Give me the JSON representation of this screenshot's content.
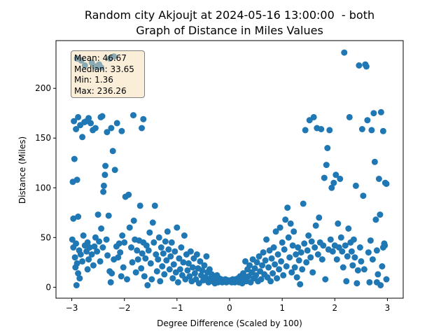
{
  "chart_data": {
    "type": "scatter",
    "title": "Random city Akjoujt at 2024-05-16 13:00:00  - both",
    "subtitle": "Graph of Distance in Miles Values",
    "xlabel": "Degree Difference (Scaled by 100)",
    "ylabel": "Distance (Miles)",
    "xlim": [
      -3.3,
      3.3
    ],
    "ylim": [
      -11,
      248
    ],
    "xticks": [
      -3,
      -2,
      -1,
      0,
      1,
      2,
      3
    ],
    "yticks": [
      0,
      50,
      100,
      150,
      200
    ],
    "grid": false,
    "marker_color": "#1f77b4",
    "stats": {
      "mean": "Mean: 46.67",
      "median": "Median: 33.65",
      "min": "Min: 1.36",
      "max": "Max: 236.26"
    },
    "points": [
      [
        -2.98,
        106
      ],
      [
        -2.95,
        129
      ],
      [
        -2.9,
        108
      ],
      [
        -2.97,
        69
      ],
      [
        -2.88,
        71
      ],
      [
        -2.99,
        48
      ],
      [
        -2.92,
        44
      ],
      [
        -2.86,
        37
      ],
      [
        -2.94,
        30
      ],
      [
        -2.9,
        24
      ],
      [
        -2.97,
        40
      ],
      [
        -2.83,
        33
      ],
      [
        -2.93,
        20
      ],
      [
        -2.88,
        14
      ],
      [
        -2.91,
        2
      ],
      [
        -2.85,
        9
      ],
      [
        -2.8,
        26
      ],
      [
        -2.78,
        52
      ],
      [
        -2.75,
        42
      ],
      [
        -2.72,
        36
      ],
      [
        -2.7,
        45
      ],
      [
        -2.68,
        28
      ],
      [
        -2.66,
        40
      ],
      [
        -2.7,
        18
      ],
      [
        -2.62,
        33
      ],
      [
        -2.59,
        22
      ],
      [
        -2.57,
        41
      ],
      [
        -2.55,
        50
      ],
      [
        -2.52,
        36
      ],
      [
        -2.5,
        73
      ],
      [
        -2.48,
        46
      ],
      [
        -2.46,
        26
      ],
      [
        -2.44,
        59
      ],
      [
        -2.41,
        40
      ],
      [
        -2.4,
        96
      ],
      [
        -2.39,
        102
      ],
      [
        -2.37,
        113
      ],
      [
        -2.36,
        122
      ],
      [
        -2.34,
        48
      ],
      [
        -2.32,
        32
      ],
      [
        -2.3,
        72
      ],
      [
        -2.28,
        16
      ],
      [
        -2.26,
        5
      ],
      [
        -2.24,
        14
      ],
      [
        -2.22,
        137
      ],
      [
        -2.2,
        28
      ],
      [
        -2.18,
        118
      ],
      [
        -2.15,
        41
      ],
      [
        -2.12,
        30
      ],
      [
        -2.1,
        44
      ],
      [
        -2.08,
        35
      ],
      [
        -2.06,
        11
      ],
      [
        -2.04,
        52
      ],
      [
        -2.02,
        20
      ],
      [
        -2.0,
        45
      ],
      [
        -1.98,
        91
      ],
      [
        -1.95,
        8
      ],
      [
        -1.92,
        93
      ],
      [
        -1.9,
        60
      ],
      [
        -1.87,
        40
      ],
      [
        -1.85,
        25
      ],
      [
        -1.82,
        67
      ],
      [
        -1.8,
        48
      ],
      [
        -1.78,
        15
      ],
      [
        -1.76,
        37
      ],
      [
        -1.74,
        28
      ],
      [
        -1.72,
        47
      ],
      [
        -1.7,
        82
      ],
      [
        -1.68,
        19
      ],
      [
        -1.66,
        34
      ],
      [
        -1.64,
        45
      ],
      [
        -1.62,
        11
      ],
      [
        -1.6,
        29
      ],
      [
        -1.58,
        42
      ],
      [
        -1.56,
        2
      ],
      [
        -1.54,
        37
      ],
      [
        -1.52,
        55
      ],
      [
        -1.5,
        24
      ],
      [
        -1.48,
        8
      ],
      [
        -1.46,
        65
      ],
      [
        -1.44,
        45
      ],
      [
        -1.42,
        82
      ],
      [
        -1.4,
        33
      ],
      [
        -1.38,
        16
      ],
      [
        -1.36,
        28
      ],
      [
        -1.34,
        50
      ],
      [
        -1.32,
        6
      ],
      [
        -1.3,
        40
      ],
      [
        -1.28,
        21
      ],
      [
        -1.26,
        34
      ],
      [
        -1.24,
        13
      ],
      [
        -1.22,
        46
      ],
      [
        -1.2,
        27
      ],
      [
        -1.18,
        56
      ],
      [
        -1.16,
        38
      ],
      [
        -1.14,
        18
      ],
      [
        -1.12,
        31
      ],
      [
        -1.1,
        45
      ],
      [
        -1.08,
        9
      ],
      [
        -1.06,
        23
      ],
      [
        -1.04,
        36
      ],
      [
        -1.02,
        15
      ],
      [
        -1.0,
        60
      ],
      [
        -0.98,
        5
      ],
      [
        -0.96,
        29
      ],
      [
        -0.94,
        18
      ],
      [
        -0.92,
        40
      ],
      [
        -0.9,
        12
      ],
      [
        -0.88,
        25
      ],
      [
        -0.86,
        52
      ],
      [
        -0.84,
        8
      ],
      [
        -0.82,
        33
      ],
      [
        -0.8,
        17
      ],
      [
        -0.78,
        24
      ],
      [
        -0.76,
        11
      ],
      [
        -0.74,
        36
      ],
      [
        -0.72,
        6
      ],
      [
        -0.7,
        20
      ],
      [
        -0.68,
        29
      ],
      [
        -0.66,
        14
      ],
      [
        -0.64,
        8
      ],
      [
        -0.62,
        33
      ],
      [
        -0.6,
        19
      ],
      [
        -0.58,
        4
      ],
      [
        -0.56,
        26
      ],
      [
        -0.54,
        12
      ],
      [
        -0.52,
        17
      ],
      [
        -0.5,
        7
      ],
      [
        -0.48,
        22
      ],
      [
        -0.46,
        10
      ],
      [
        -0.44,
        31
      ],
      [
        -0.42,
        15
      ],
      [
        -0.4,
        5
      ],
      [
        -0.38,
        18
      ],
      [
        -0.36,
        9
      ],
      [
        -0.34,
        13
      ],
      [
        -0.32,
        6
      ],
      [
        -0.3,
        11
      ],
      [
        -0.28,
        4
      ],
      [
        -0.26,
        8
      ],
      [
        -0.24,
        12
      ],
      [
        -0.22,
        5
      ],
      [
        -0.2,
        9
      ],
      [
        -0.18,
        6
      ],
      [
        -0.16,
        8
      ],
      [
        -0.14,
        5
      ],
      [
        -0.12,
        7
      ],
      [
        -0.1,
        6
      ],
      [
        -0.08,
        8
      ],
      [
        -0.06,
        5
      ],
      [
        -0.04,
        7
      ],
      [
        -0.02,
        6
      ],
      [
        0.0,
        6
      ],
      [
        0.02,
        7
      ],
      [
        0.04,
        5
      ],
      [
        0.06,
        8
      ],
      [
        0.08,
        6
      ],
      [
        0.1,
        5
      ],
      [
        0.12,
        8
      ],
      [
        0.14,
        6
      ],
      [
        0.16,
        9
      ],
      [
        0.18,
        5
      ],
      [
        0.2,
        11
      ],
      [
        0.22,
        7
      ],
      [
        0.24,
        4
      ],
      [
        0.26,
        14
      ],
      [
        0.28,
        9
      ],
      [
        0.3,
        26
      ],
      [
        0.32,
        6
      ],
      [
        0.34,
        18
      ],
      [
        0.36,
        11
      ],
      [
        0.38,
        22
      ],
      [
        0.4,
        5
      ],
      [
        0.42,
        15
      ],
      [
        0.44,
        28
      ],
      [
        0.46,
        9
      ],
      [
        0.48,
        19
      ],
      [
        0.5,
        12
      ],
      [
        0.52,
        25
      ],
      [
        0.54,
        6
      ],
      [
        0.56,
        31
      ],
      [
        0.58,
        16
      ],
      [
        0.6,
        8
      ],
      [
        0.62,
        22
      ],
      [
        0.64,
        35
      ],
      [
        0.66,
        13
      ],
      [
        0.68,
        27
      ],
      [
        0.7,
        48
      ],
      [
        0.72,
        10
      ],
      [
        0.74,
        20
      ],
      [
        0.76,
        37
      ],
      [
        0.78,
        6
      ],
      [
        0.8,
        29
      ],
      [
        0.82,
        14
      ],
      [
        0.84,
        40
      ],
      [
        0.86,
        23
      ],
      [
        0.88,
        56
      ],
      [
        0.9,
        9
      ],
      [
        0.92,
        33
      ],
      [
        0.94,
        18
      ],
      [
        0.96,
        60
      ],
      [
        0.98,
        26
      ],
      [
        1.0,
        45
      ],
      [
        1.02,
        12
      ],
      [
        1.04,
        38
      ],
      [
        1.06,
        68
      ],
      [
        1.08,
        21
      ],
      [
        1.1,
        80
      ],
      [
        1.12,
        50
      ],
      [
        1.14,
        30
      ],
      [
        1.16,
        64
      ],
      [
        1.18,
        15
      ],
      [
        1.2,
        42
      ],
      [
        1.22,
        56
      ],
      [
        1.24,
        20
      ],
      [
        1.26,
        33
      ],
      [
        1.28,
        10
      ],
      [
        1.3,
        40
      ],
      [
        1.32,
        27
      ],
      [
        1.34,
        3
      ],
      [
        1.36,
        35
      ],
      [
        1.38,
        18
      ],
      [
        1.4,
        84
      ],
      [
        1.42,
        44
      ],
      [
        1.44,
        158
      ],
      [
        1.46,
        25
      ],
      [
        1.48,
        37
      ],
      [
        1.5,
        52
      ],
      [
        1.52,
        168
      ],
      [
        1.54,
        30
      ],
      [
        1.56,
        46
      ],
      [
        1.58,
        15
      ],
      [
        1.6,
        171
      ],
      [
        1.62,
        40
      ],
      [
        1.64,
        62
      ],
      [
        1.66,
        160
      ],
      [
        1.68,
        33
      ],
      [
        1.7,
        70
      ],
      [
        1.72,
        45
      ],
      [
        1.74,
        159
      ],
      [
        1.76,
        28
      ],
      [
        1.78,
        42
      ],
      [
        1.8,
        110
      ],
      [
        1.82,
        8
      ],
      [
        1.84,
        123
      ],
      [
        1.86,
        140
      ],
      [
        1.88,
        38
      ],
      [
        1.9,
        158
      ],
      [
        1.92,
        48
      ],
      [
        1.94,
        100
      ],
      [
        1.96,
        36
      ],
      [
        1.98,
        105
      ],
      [
        2.0,
        42
      ],
      [
        2.02,
        113
      ],
      [
        2.04,
        28
      ],
      [
        2.06,
        64
      ],
      [
        2.08,
        40
      ],
      [
        2.1,
        109
      ],
      [
        2.12,
        50
      ],
      [
        2.14,
        36
      ],
      [
        2.16,
        20
      ],
      [
        2.18,
        236
      ],
      [
        2.2,
        42
      ],
      [
        2.22,
        6
      ],
      [
        2.24,
        31
      ],
      [
        2.26,
        59
      ],
      [
        2.28,
        171
      ],
      [
        2.3,
        45
      ],
      [
        2.32,
        36
      ],
      [
        2.34,
        22
      ],
      [
        2.36,
        48
      ],
      [
        2.38,
        30
      ],
      [
        2.4,
        102
      ],
      [
        2.42,
        4
      ],
      [
        2.44,
        17
      ],
      [
        2.46,
        223
      ],
      [
        2.48,
        40
      ],
      [
        2.5,
        26
      ],
      [
        2.52,
        159
      ],
      [
        2.54,
        92
      ],
      [
        2.56,
        18
      ],
      [
        2.58,
        224
      ],
      [
        2.6,
        222
      ],
      [
        2.62,
        168
      ],
      [
        2.64,
        35
      ],
      [
        2.66,
        5
      ],
      [
        2.68,
        47
      ],
      [
        2.7,
        158
      ],
      [
        2.72,
        28
      ],
      [
        2.74,
        175
      ],
      [
        2.76,
        126
      ],
      [
        2.78,
        68
      ],
      [
        2.8,
        37
      ],
      [
        2.82,
        13
      ],
      [
        2.84,
        109
      ],
      [
        2.86,
        73
      ],
      [
        2.88,
        176
      ],
      [
        2.9,
        21
      ],
      [
        2.92,
        157
      ],
      [
        2.94,
        44
      ],
      [
        2.96,
        105
      ],
      [
        2.98,
        8
      ],
      [
        2.8,
        5
      ],
      [
        2.87,
        2
      ],
      [
        2.92,
        40
      ],
      [
        2.95,
        42
      ],
      [
        2.98,
        104
      ],
      [
        -2.96,
        167
      ],
      [
        -2.92,
        159
      ],
      [
        -2.88,
        171
      ],
      [
        -2.84,
        163
      ],
      [
        -2.8,
        151
      ],
      [
        -2.76,
        166
      ],
      [
        -2.72,
        167
      ],
      [
        -2.68,
        170
      ],
      [
        -2.64,
        165
      ],
      [
        -2.6,
        158
      ],
      [
        -2.55,
        160
      ],
      [
        -2.45,
        171
      ],
      [
        -2.42,
        172
      ],
      [
        -2.33,
        156
      ],
      [
        -2.25,
        160
      ],
      [
        -2.14,
        165
      ],
      [
        -2.05,
        157
      ],
      [
        -1.83,
        173
      ],
      [
        -1.67,
        160
      ],
      [
        -1.64,
        169
      ],
      [
        -2.9,
        230
      ],
      [
        -2.82,
        228
      ],
      [
        -2.75,
        223
      ],
      [
        -2.62,
        226
      ],
      [
        -2.56,
        222
      ],
      [
        -2.48,
        224
      ],
      [
        -2.44,
        221
      ],
      [
        -2.28,
        230
      ],
      [
        -2.2,
        232
      ]
    ]
  }
}
